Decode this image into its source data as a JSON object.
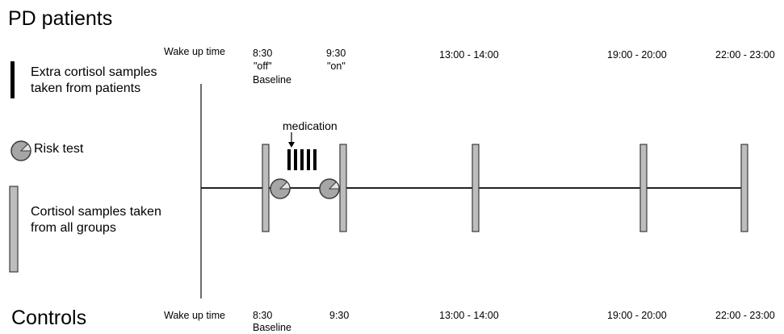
{
  "pd": {
    "title": "PD patients",
    "wake_label": "Wake up time",
    "times": [
      "8:30",
      "9:30",
      "13:00 - 14:00",
      "19:00 - 20:00",
      "22:00 - 23:00"
    ],
    "status_off": "\"off\"",
    "status_on": "\"on\"",
    "baseline": "Baseline",
    "medication": "medication"
  },
  "controls": {
    "title": "Controls",
    "wake_label": "Wake up time",
    "times": [
      "8:30",
      "9:30",
      "13:00 - 14:00",
      "19:00 - 20:00",
      "22:00 - 23:00"
    ],
    "baseline": "Baseline"
  },
  "legend": {
    "extra_samples": "Extra cortisol samples\ntaken from patients",
    "risk_test": "Risk test",
    "all_samples": "Cortisol samples taken\nfrom all groups"
  },
  "colors": {
    "sample_fill": "#bdbdbd",
    "risk_fill": "#a6a6a6",
    "stroke": "#3a3a3a",
    "extra_bar": "#000000"
  }
}
